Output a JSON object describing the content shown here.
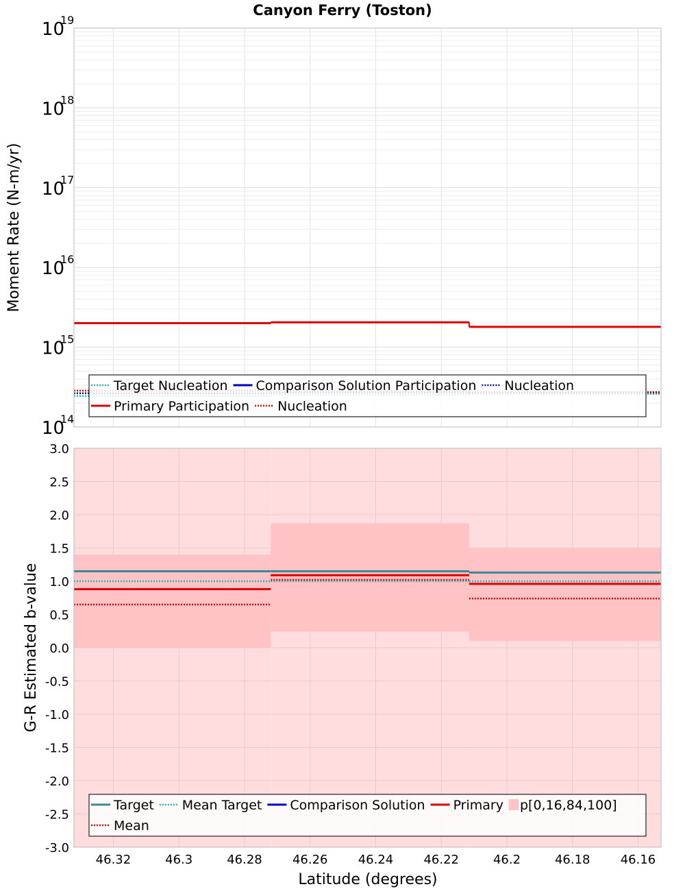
{
  "chart_data": [
    {
      "type": "line",
      "title": "Canyon Ferry (Toston)",
      "xlabel": "",
      "ylabel": "Moment Rate (N-m/yr)",
      "yscale": "log",
      "ylim": [
        100000000000000.0,
        1e+19
      ],
      "xlim": [
        46.332,
        46.153
      ],
      "x_reversed": true,
      "grid": true,
      "y_ticks": [
        {
          "base": "10",
          "exp": "14",
          "value": 100000000000000.0
        },
        {
          "base": "10",
          "exp": "15",
          "value": 1000000000000000.0
        },
        {
          "base": "10",
          "exp": "16",
          "value": 1e+16
        },
        {
          "base": "10",
          "exp": "17",
          "value": 1e+17
        },
        {
          "base": "10",
          "exp": "18",
          "value": 1e+18
        },
        {
          "base": "10",
          "exp": "19",
          "value": 1e+19
        }
      ],
      "segments": [
        {
          "x0": 46.332,
          "x1": 46.272
        },
        {
          "x0": 46.272,
          "x1": 46.2115
        },
        {
          "x0": 46.2115,
          "x1": 46.153
        }
      ],
      "series": [
        {
          "name": "Target Nucleation",
          "color": "#22b8b8",
          "style": "dotted",
          "values": [
            245000000000000.0,
            252000000000000.0,
            260000000000000.0
          ]
        },
        {
          "name": "Comparison Solution Participation",
          "color": "#0000cc",
          "style": "solid",
          "values": [
            null,
            null,
            null
          ]
        },
        {
          "name": "Nucleation",
          "color": "#000099",
          "style": "dotted",
          "values": [
            265000000000000.0,
            268000000000000.0,
            270000000000000.0
          ]
        },
        {
          "name": "Primary Participation",
          "color": "#dd0000",
          "style": "solid",
          "values": [
            2000000000000000.0,
            2050000000000000.0,
            1800000000000000.0
          ]
        },
        {
          "name": "Nucleation",
          "color": "#dd0000",
          "style": "dotted",
          "values": [
            285000000000000.0,
            280000000000000.0,
            275000000000000.0
          ]
        }
      ],
      "legend": {
        "position": "bottom",
        "rows": [
          [
            {
              "name": "Target Nucleation",
              "color": "#22b8b8",
              "style": "dotted"
            },
            {
              "name": "Comparison Solution Participation",
              "color": "#0000cc",
              "style": "solid"
            },
            {
              "name": "Nucleation",
              "color": "#000099",
              "style": "dotted"
            }
          ],
          [
            {
              "name": "Primary Participation",
              "color": "#dd0000",
              "style": "solid"
            },
            {
              "name": "Nucleation",
              "color": "#dd0000",
              "style": "dotted"
            }
          ]
        ]
      }
    },
    {
      "type": "line",
      "title": "",
      "xlabel": "Latitude (degrees)",
      "ylabel": "G-R Estimated b-value",
      "ylim": [
        -3.0,
        3.0
      ],
      "xlim": [
        46.332,
        46.153
      ],
      "x_reversed": true,
      "grid": true,
      "y_ticks": [
        "-3.0",
        "-2.5",
        "-2.0",
        "-1.5",
        "-1.0",
        "-0.5",
        "0.0",
        "0.5",
        "1.0",
        "1.5",
        "2.0",
        "2.5",
        "3.0"
      ],
      "x_ticks": [
        "46.32",
        "46.3",
        "46.28",
        "46.26",
        "46.24",
        "46.22",
        "46.2",
        "46.18",
        "46.16"
      ],
      "segments": [
        {
          "x0": 46.332,
          "x1": 46.272
        },
        {
          "x0": 46.272,
          "x1": 46.2115
        },
        {
          "x0": 46.2115,
          "x1": 46.153
        }
      ],
      "bands": {
        "name": "p[0,16,84,100]",
        "outer": [
          [
            -3.0,
            3.0
          ],
          [
            -3.0,
            3.0
          ],
          [
            -3.0,
            3.0
          ]
        ],
        "inner": [
          [
            0.0,
            1.4
          ],
          [
            0.24,
            1.87
          ],
          [
            0.1,
            1.49
          ]
        ],
        "outer_color": "#ffdddf",
        "inner_color": "#ffc3c6"
      },
      "series": [
        {
          "name": "Target",
          "color": "#3a8a96",
          "style": "solid",
          "values": [
            1.15,
            1.15,
            1.13
          ]
        },
        {
          "name": "Mean Target",
          "color": "#22b8b8",
          "style": "dotted",
          "values": [
            1.0,
            1.0,
            1.0
          ]
        },
        {
          "name": "Comparison Solution",
          "color": "#0000cc",
          "style": "solid",
          "values": [
            null,
            null,
            null
          ]
        },
        {
          "name": "Primary",
          "color": "#dd0000",
          "style": "solid",
          "values": [
            0.88,
            1.09,
            0.96
          ]
        },
        {
          "name": "Mean",
          "color": "#dd0000",
          "style": "dotted",
          "values": [
            0.65,
            1.02,
            0.74
          ]
        }
      ],
      "legend": {
        "position": "bottom",
        "rows": [
          [
            {
              "name": "Target",
              "color": "#3a8a96",
              "style": "solid"
            },
            {
              "name": "Mean Target",
              "color": "#22b8b8",
              "style": "dotted"
            },
            {
              "name": "Comparison Solution",
              "color": "#0000cc",
              "style": "solid"
            },
            {
              "name": "Primary",
              "color": "#dd0000",
              "style": "solid"
            },
            {
              "name": "p[0,16,84,100]",
              "color": "#ffc3c6",
              "style": "box"
            }
          ],
          [
            {
              "name": "Mean",
              "color": "#dd0000",
              "style": "dotted"
            }
          ]
        ]
      }
    }
  ]
}
